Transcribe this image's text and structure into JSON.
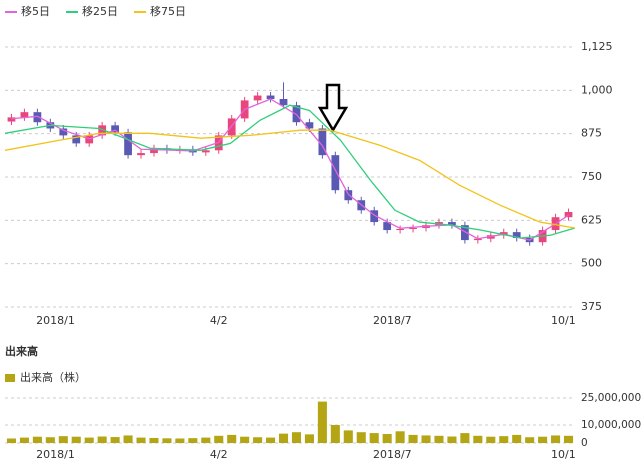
{
  "chart_data": [
    {
      "type": "candlestick",
      "candles": {
        "open": [
          910,
          922,
          937,
          908,
          890,
          870,
          847,
          870,
          899,
          879,
          813,
          819,
          833,
          827,
          830,
          821,
          827,
          870,
          919,
          971,
          985,
          975,
          957,
          908,
          890,
          813,
          712,
          683,
          654,
          620,
          597,
          600,
          603,
          611,
          620,
          611,
          568,
          572,
          582,
          591,
          574,
          562,
          597,
          634
        ],
        "high": [
          932,
          947,
          947,
          918,
          900,
          880,
          880,
          909,
          909,
          889,
          829,
          843,
          843,
          840,
          840,
          837,
          880,
          929,
          981,
          995,
          995,
          1023,
          967,
          918,
          900,
          823,
          722,
          693,
          664,
          630,
          610,
          613,
          621,
          630,
          630,
          621,
          582,
          592,
          601,
          601,
          584,
          607,
          644,
          659
        ],
        "low": [
          900,
          912,
          898,
          880,
          860,
          837,
          837,
          860,
          869,
          803,
          803,
          809,
          817,
          817,
          811,
          811,
          817,
          860,
          909,
          961,
          965,
          947,
          898,
          880,
          803,
          702,
          673,
          644,
          610,
          587,
          587,
          590,
          593,
          601,
          601,
          558,
          558,
          562,
          572,
          564,
          552,
          552,
          587,
          624
        ],
        "close": [
          922,
          937,
          908,
          890,
          870,
          847,
          870,
          899,
          879,
          813,
          819,
          833,
          827,
          830,
          821,
          827,
          870,
          919,
          971,
          985,
          975,
          957,
          908,
          890,
          813,
          712,
          683,
          654,
          620,
          597,
          600,
          603,
          611,
          620,
          611,
          568,
          572,
          582,
          591,
          574,
          562,
          597,
          634,
          649
        ],
        "up_color": "#e8467c",
        "down_color": "#5a5ab4"
      },
      "series": [
        {
          "name": "移5日",
          "color": "#e462dc",
          "x": [
            0.5,
            2.5,
            4.5,
            6.5,
            8.5,
            10.5,
            12.5,
            14.5,
            16.5,
            18.5,
            20.5,
            22.5,
            24.5,
            26.5,
            28.5,
            30.5,
            32.5,
            34.5,
            36.5,
            38.5,
            40.5,
            42.5,
            43.5
          ],
          "values": [
            918,
            925,
            885,
            860,
            885,
            830,
            828,
            825,
            850,
            945,
            975,
            930,
            840,
            700,
            640,
            602,
            608,
            612,
            572,
            585,
            568,
            615,
            640
          ]
        },
        {
          "name": "移25日",
          "color": "#2ecf7a",
          "x": [
            0,
            3.5,
            7.3,
            11.2,
            15.1,
            17.4,
            19.7,
            22,
            23.5,
            25.9,
            28.2,
            30.1,
            32,
            34.4,
            36.7,
            39.8,
            42.1,
            44
          ],
          "values": [
            876,
            899,
            890,
            833,
            827,
            847,
            914,
            957,
            942,
            856,
            741,
            654,
            620,
            611,
            597,
            574,
            582,
            603
          ]
        },
        {
          "name": "移75日",
          "color": "#f2c318",
          "x": [
            0,
            4.2,
            7.3,
            11.2,
            15.1,
            18.9,
            22.8,
            25.1,
            28.9,
            32,
            35.1,
            38.2,
            41.3,
            44
          ],
          "values": [
            827,
            856,
            876,
            876,
            862,
            870,
            885,
            885,
            842,
            798,
            726,
            669,
            620,
            603
          ]
        }
      ],
      "xlim": [
        0,
        44
      ],
      "xticks": [
        {
          "value": 3.9,
          "label": "2018/1"
        },
        {
          "value": 16.5,
          "label": "4/2"
        },
        {
          "value": 29.9,
          "label": "2018/7"
        },
        {
          "value": 43.1,
          "label": "10/1"
        }
      ],
      "ylim": [
        375,
        1125
      ],
      "yticks": [
        375,
        500,
        625,
        750,
        875,
        {
          "value": 1000,
          "label": "1,000"
        },
        {
          "value": 1125,
          "label": "1,125"
        }
      ],
      "grid": true
    },
    {
      "type": "bar",
      "title": "出来高",
      "series": [
        {
          "name": "出来高（株）",
          "color": "#b3a514",
          "values": [
            2500000,
            3000000,
            3500000,
            3200000,
            3800000,
            3500000,
            3000000,
            3600000,
            3300000,
            4200000,
            3000000,
            2800000,
            2600000,
            2500000,
            2700000,
            3000000,
            4000000,
            4500000,
            3500000,
            3200000,
            3000000,
            5200000,
            6000000,
            4800000,
            23000000,
            10000000,
            7000000,
            6000000,
            5500000,
            5000000,
            6500000,
            4500000,
            4200000,
            4000000,
            3600000,
            5500000,
            4000000,
            3500000,
            3800000,
            4500000,
            3200000,
            3500000,
            4200000,
            4000000
          ]
        }
      ],
      "xlim": [
        0,
        44
      ],
      "xticks": [
        {
          "value": 3.9,
          "label": "2018/1"
        },
        {
          "value": 16.5,
          "label": "4/2"
        },
        {
          "value": 29.9,
          "label": "2018/7"
        },
        {
          "value": 43.1,
          "label": "10/1"
        }
      ],
      "ylim": [
        0,
        30000000
      ],
      "yticks": [
        0,
        {
          "value": 10000000,
          "label": "10,000,000"
        },
        {
          "value": 25000000,
          "label": "25,000,000"
        }
      ],
      "grid": true
    }
  ]
}
